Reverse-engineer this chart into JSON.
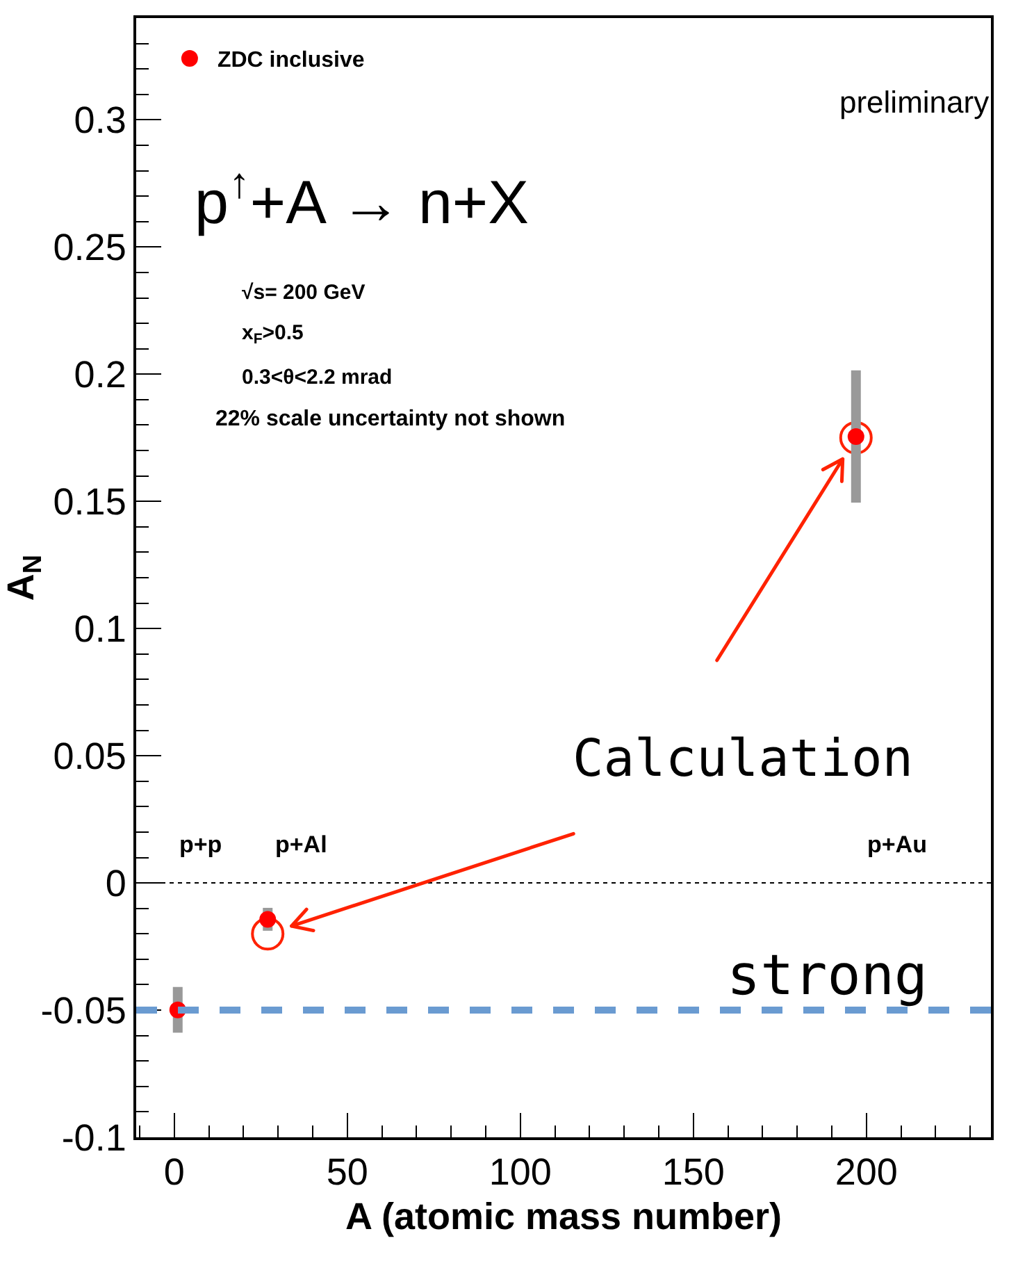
{
  "chart_data": {
    "type": "scatter",
    "xlabel": "A (atomic mass number)",
    "ylabel": "A$_{N}$",
    "xlim": [
      -11,
      236
    ],
    "xticks": [
      0,
      50,
      100,
      150,
      200
    ],
    "ylim": [
      -0.1,
      0.34
    ],
    "yticks": [
      -0.1,
      -0.05,
      0,
      0.05,
      0.1,
      0.15,
      0.2,
      0.25,
      0.3
    ],
    "grid": false,
    "legend": "top left",
    "marker": "circle",
    "series": [
      {
        "name": "ZDC inclusive",
        "color": "#ff0000",
        "x": [
          1,
          27,
          197
        ],
        "values": [
          -0.0499,
          -0.0143,
          0.1755
        ],
        "errors": [
          0.009,
          0.0045,
          0.026
        ]
      },
      {
        "name": "Calculation",
        "color": "#ff2200",
        "x": [
          27,
          197
        ],
        "values": [
          -0.02,
          0.175
        ]
      }
    ],
    "ref_lines": [
      {
        "axis": "y",
        "value": 0,
        "label": null,
        "color": "#000000",
        "line_style": "dotted"
      },
      {
        "axis": "y",
        "value": -0.05,
        "label": "strong",
        "color": "#6a9bd1",
        "line_style": "dashed"
      }
    ],
    "annotations": [
      "p+p",
      "p+Al",
      "p+Au",
      "p$^{↑}$+A → n+X",
      "√s= 200 GeV",
      "x$_{F}$>0.5",
      "0.3<θ<2.2 mrad",
      "22% scale uncertainty not shown",
      "preliminary"
    ]
  }
}
